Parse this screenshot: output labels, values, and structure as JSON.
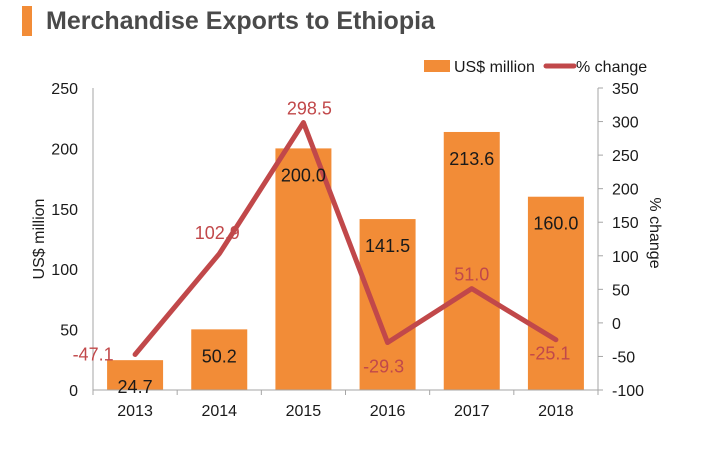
{
  "colors": {
    "bar": "#f28c37",
    "line": "#c1484a",
    "title_accent": "#f28c37",
    "title_text": "#4a4a4a",
    "bar_label": "#1a1a1a",
    "axis": "#a6a6a6",
    "tick_text": "#1a1a1a"
  },
  "chart_data": {
    "type": "bar",
    "combo": "bar+line",
    "title": "Merchandise Exports to Ethiopia",
    "categories": [
      "2013",
      "2014",
      "2015",
      "2016",
      "2017",
      "2018"
    ],
    "series": [
      {
        "name": "US$ million",
        "type": "bar",
        "axis": "left",
        "values": [
          24.7,
          50.2,
          200.0,
          141.5,
          213.6,
          160.0
        ],
        "labels": [
          "24.7",
          "50.2",
          "200.0",
          "141.5",
          "213.6",
          "160.0"
        ]
      },
      {
        "name": "% change",
        "type": "line",
        "axis": "right",
        "values": [
          -47.1,
          102.9,
          298.5,
          -29.3,
          51.0,
          -25.1
        ],
        "labels": [
          "-47.1",
          "102.9",
          "298.5",
          "-29.3",
          "51.0",
          "-25.1"
        ]
      }
    ],
    "ylabel": "US$ million",
    "y2label": "% change",
    "ylim": [
      0,
      250
    ],
    "y2lim": [
      -100,
      350
    ],
    "yticks": [
      "0",
      "50",
      "100",
      "150",
      "200",
      "250"
    ],
    "y2ticks": [
      "-100",
      "-50",
      "0",
      "50",
      "100",
      "150",
      "200",
      "250",
      "300",
      "350"
    ],
    "grid": false,
    "legend": "top-right"
  }
}
